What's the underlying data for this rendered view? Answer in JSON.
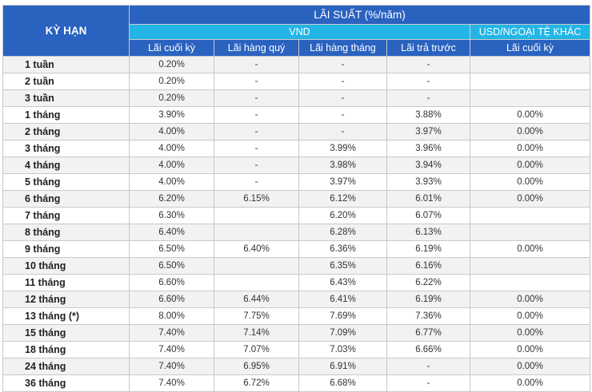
{
  "header": {
    "term_label": "KỲ HẠN",
    "rate_label": "LÃI SUẤT (%/năm)",
    "vnd_label": "VND",
    "foreign_label": "USD/NGOẠI TỆ KHÁC",
    "columns": [
      "Lãi cuối kỳ",
      "Lãi hàng quý",
      "Lãi hàng tháng",
      "Lãi trả trước",
      "Lãi cuối kỳ"
    ]
  },
  "rows": [
    {
      "term": "1 tuần",
      "cols": [
        "0.20%",
        "-",
        "-",
        "-",
        ""
      ]
    },
    {
      "term": "2 tuần",
      "cols": [
        "0.20%",
        "-",
        "-",
        "-",
        ""
      ]
    },
    {
      "term": "3 tuần",
      "cols": [
        "0.20%",
        "-",
        "-",
        "-",
        ""
      ]
    },
    {
      "term": "1 tháng",
      "cols": [
        "3.90%",
        "-",
        "-",
        "3.88%",
        "0.00%"
      ]
    },
    {
      "term": "2 tháng",
      "cols": [
        "4.00%",
        "-",
        "-",
        "3.97%",
        "0.00%"
      ]
    },
    {
      "term": "3 tháng",
      "cols": [
        "4.00%",
        "-",
        "3.99%",
        "3.96%",
        "0.00%"
      ]
    },
    {
      "term": "4 tháng",
      "cols": [
        "4.00%",
        "-",
        "3.98%",
        "3.94%",
        "0.00%"
      ]
    },
    {
      "term": "5 tháng",
      "cols": [
        "4.00%",
        "-",
        "3.97%",
        "3.93%",
        "0.00%"
      ]
    },
    {
      "term": "6 tháng",
      "cols": [
        "6.20%",
        "6.15%",
        "6.12%",
        "6.01%",
        "0.00%"
      ]
    },
    {
      "term": "7 tháng",
      "cols": [
        "6.30%",
        "",
        "6.20%",
        "6.07%",
        ""
      ]
    },
    {
      "term": "8 tháng",
      "cols": [
        "6.40%",
        "",
        "6.28%",
        "6.13%",
        ""
      ]
    },
    {
      "term": "9 tháng",
      "cols": [
        "6.50%",
        "6.40%",
        "6.36%",
        "6.19%",
        "0.00%"
      ]
    },
    {
      "term": "10 tháng",
      "cols": [
        "6.50%",
        "",
        "6.35%",
        "6.16%",
        ""
      ]
    },
    {
      "term": "11 tháng",
      "cols": [
        "6.60%",
        "",
        "6.43%",
        "6.22%",
        ""
      ]
    },
    {
      "term": "12 tháng",
      "cols": [
        "6.60%",
        "6.44%",
        "6.41%",
        "6.19%",
        "0.00%"
      ]
    },
    {
      "term": "13 tháng  (*)",
      "cols": [
        "8.00%",
        "7.75%",
        "7.69%",
        "7.36%",
        "0.00%"
      ]
    },
    {
      "term": "15 tháng",
      "cols": [
        "7.40%",
        "7.14%",
        "7.09%",
        "6.77%",
        "0.00%"
      ]
    },
    {
      "term": "18 tháng",
      "cols": [
        "7.40%",
        "7.07%",
        "7.03%",
        "6.66%",
        "0.00%"
      ]
    },
    {
      "term": "24 tháng",
      "cols": [
        "7.40%",
        "6.95%",
        "6.91%",
        "-",
        "0.00%"
      ]
    },
    {
      "term": "36 tháng",
      "cols": [
        "7.40%",
        "6.72%",
        "6.68%",
        "-",
        "0.00%"
      ]
    }
  ]
}
